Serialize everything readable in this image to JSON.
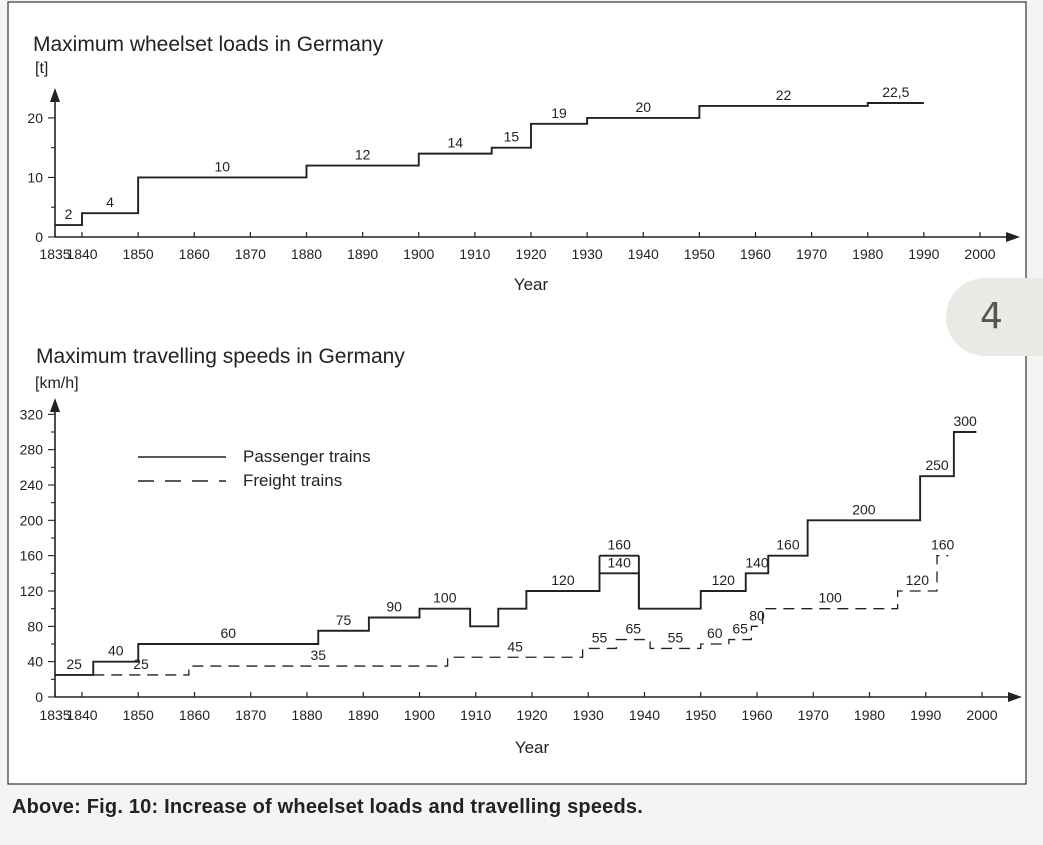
{
  "page_number": "4",
  "caption": "Above: Fig. 10: Increase of wheelset loads and travelling speeds.",
  "chart_data": [
    {
      "type": "line",
      "step": true,
      "title": "Maximum wheelset loads in Germany",
      "ylabel": "[t]",
      "xlabel": "Year",
      "xlim": [
        1835,
        2000
      ],
      "ylim": [
        0,
        22.5
      ],
      "x_ticks": [
        1835,
        1840,
        1850,
        1860,
        1870,
        1880,
        1890,
        1900,
        1910,
        1920,
        1930,
        1940,
        1950,
        1960,
        1970,
        1980,
        1990,
        2000
      ],
      "y_ticks": [
        0,
        10,
        20
      ],
      "series": [
        {
          "line": "solid",
          "segments": [
            {
              "x0": 1835,
              "x1": 1840,
              "y": 2,
              "label": "2"
            },
            {
              "x0": 1840,
              "x1": 1850,
              "y": 4,
              "label": "4"
            },
            {
              "x0": 1850,
              "x1": 1880,
              "y": 10,
              "label": "10"
            },
            {
              "x0": 1880,
              "x1": 1900,
              "y": 12,
              "label": "12"
            },
            {
              "x0": 1900,
              "x1": 1913,
              "y": 14,
              "label": "14"
            },
            {
              "x0": 1913,
              "x1": 1920,
              "y": 15,
              "label": "15"
            },
            {
              "x0": 1920,
              "x1": 1930,
              "y": 19,
              "label": "19"
            },
            {
              "x0": 1930,
              "x1": 1950,
              "y": 20,
              "label": "20"
            },
            {
              "x0": 1950,
              "x1": 1980,
              "y": 22,
              "label": "22"
            },
            {
              "x0": 1980,
              "x1": 1990,
              "y": 22.5,
              "label": "22,5"
            }
          ]
        }
      ]
    },
    {
      "type": "line",
      "step": true,
      "title": "Maximum travelling speeds in Germany",
      "ylabel": "[km/h]",
      "xlabel": "Year",
      "xlim": [
        1835,
        2000
      ],
      "ylim": [
        0,
        300
      ],
      "x_ticks": [
        1835,
        1840,
        1850,
        1860,
        1870,
        1880,
        1890,
        1900,
        1910,
        1920,
        1930,
        1940,
        1950,
        1960,
        1970,
        1980,
        1990,
        2000
      ],
      "y_ticks": [
        0,
        40,
        80,
        120,
        160,
        200,
        240,
        280,
        320
      ],
      "legend": [
        "Passenger trains",
        "Freight trains"
      ],
      "legend_position": "top-left",
      "series": [
        {
          "name": "Passenger trains",
          "line": "solid",
          "segments": [
            {
              "x0": 1835,
              "x1": 1842,
              "y": 25,
              "label": "25"
            },
            {
              "x0": 1842,
              "x1": 1850,
              "y": 40,
              "label": "40"
            },
            {
              "x0": 1850,
              "x1": 1882,
              "y": 60,
              "label": "60"
            },
            {
              "x0": 1882,
              "x1": 1891,
              "y": 75,
              "label": "75"
            },
            {
              "x0": 1891,
              "x1": 1900,
              "y": 90,
              "label": "90"
            },
            {
              "x0": 1900,
              "x1": 1909,
              "y": 100,
              "label": "100"
            },
            {
              "x0": 1909,
              "x1": 1914,
              "y": 80,
              "label": ""
            },
            {
              "x0": 1914,
              "x1": 1919,
              "y": 100,
              "label": ""
            },
            {
              "x0": 1919,
              "x1": 1932,
              "y": 120,
              "label": "120"
            },
            {
              "x0": 1932,
              "x1": 1939,
              "y": 140,
              "label": "140"
            },
            {
              "x0": 1939,
              "x1": 1950,
              "y": 100,
              "label": ""
            },
            {
              "x0": 1950,
              "x1": 1958,
              "y": 120,
              "label": "120"
            },
            {
              "x0": 1958,
              "x1": 1962,
              "y": 140,
              "label": "140"
            },
            {
              "x0": 1962,
              "x1": 1969,
              "y": 160,
              "label": "160"
            },
            {
              "x0": 1969,
              "x1": 1989,
              "y": 200,
              "label": "200"
            },
            {
              "x0": 1989,
              "x1": 1995,
              "y": 250,
              "label": "250"
            },
            {
              "x0": 1995,
              "x1": 1999,
              "y": 300,
              "label": "300"
            }
          ],
          "extra_box": {
            "x0": 1932,
            "x1": 1939,
            "y": 160,
            "label": "160"
          }
        },
        {
          "name": "Freight trains",
          "line": "dashed",
          "segments": [
            {
              "x0": 1842,
              "x1": 1859,
              "y": 25,
              "label": "25"
            },
            {
              "x0": 1859,
              "x1": 1905,
              "y": 35,
              "label": "35"
            },
            {
              "x0": 1905,
              "x1": 1929,
              "y": 45,
              "label": "45"
            },
            {
              "x0": 1929,
              "x1": 1935,
              "y": 55,
              "label": "55"
            },
            {
              "x0": 1935,
              "x1": 1941,
              "y": 65,
              "label": "65"
            },
            {
              "x0": 1941,
              "x1": 1950,
              "y": 55,
              "label": "55"
            },
            {
              "x0": 1950,
              "x1": 1955,
              "y": 60,
              "label": "60"
            },
            {
              "x0": 1955,
              "x1": 1959,
              "y": 65,
              "label": "65"
            },
            {
              "x0": 1959,
              "x1": 1961,
              "y": 80,
              "label": "80"
            },
            {
              "x0": 1961,
              "x1": 1985,
              "y": 100,
              "label": "100"
            },
            {
              "x0": 1985,
              "x1": 1992,
              "y": 120,
              "label": "120"
            },
            {
              "x0": 1992,
              "x1": 1994,
              "y": 160,
              "label": "160"
            }
          ]
        }
      ]
    }
  ]
}
